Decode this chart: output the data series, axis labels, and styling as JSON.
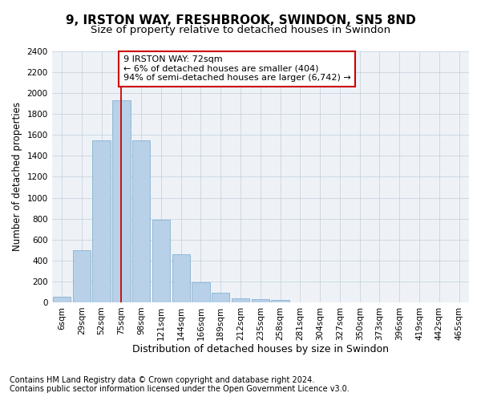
{
  "title_line1": "9, IRSTON WAY, FRESHBROOK, SWINDON, SN5 8ND",
  "title_line2": "Size of property relative to detached houses in Swindon",
  "xlabel": "Distribution of detached houses by size in Swindon",
  "ylabel": "Number of detached properties",
  "footer_line1": "Contains HM Land Registry data © Crown copyright and database right 2024.",
  "footer_line2": "Contains public sector information licensed under the Open Government Licence v3.0.",
  "annotation_line1": "9 IRSTON WAY: 72sqm",
  "annotation_line2": "← 6% of detached houses are smaller (404)",
  "annotation_line3": "94% of semi-detached houses are larger (6,742) →",
  "bar_labels": [
    "6sqm",
    "29sqm",
    "52sqm",
    "75sqm",
    "98sqm",
    "121sqm",
    "144sqm",
    "166sqm",
    "189sqm",
    "212sqm",
    "235sqm",
    "258sqm",
    "281sqm",
    "304sqm",
    "327sqm",
    "350sqm",
    "373sqm",
    "396sqm",
    "419sqm",
    "442sqm",
    "465sqm"
  ],
  "bar_values": [
    55,
    500,
    1550,
    1930,
    1550,
    790,
    460,
    195,
    90,
    40,
    28,
    20,
    0,
    0,
    0,
    0,
    0,
    0,
    0,
    0,
    0
  ],
  "bar_color": "#b8d0e8",
  "bar_edge_color": "#7aaacb",
  "vline_color": "#cc0000",
  "annotation_box_color": "#cc0000",
  "background_color": "#eef2f7",
  "grid_color": "#c8d4e0",
  "ylim": [
    0,
    2400
  ],
  "yticks": [
    0,
    200,
    400,
    600,
    800,
    1000,
    1200,
    1400,
    1600,
    1800,
    2000,
    2200,
    2400
  ],
  "title1_fontsize": 11,
  "title2_fontsize": 9.5,
  "axis_label_fontsize": 8.5,
  "tick_fontsize": 7.5,
  "annotation_fontsize": 8,
  "footer_fontsize": 7
}
